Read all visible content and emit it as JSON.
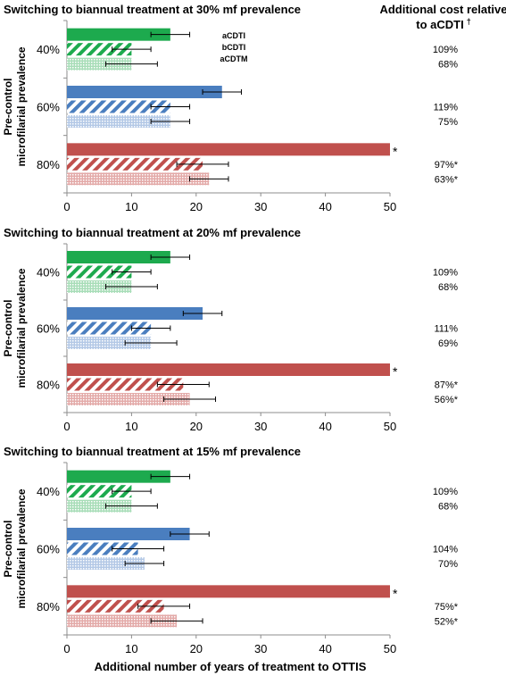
{
  "header": {
    "cost_title_line1": "Additional cost relative",
    "cost_title_line2": "to aCDTI",
    "cost_title_dagger": "†"
  },
  "legend": [
    "aCDTI",
    "bCDTI",
    "aCDTM"
  ],
  "colors": {
    "40%": "#1daa4e",
    "60%": "#4a7ebf",
    "80%": "#c0504d"
  },
  "y_axis_label_line1": "Pre-control",
  "y_axis_label_line2": "microfilarial prevalence",
  "x_axis_label": "Additional number of years of treatment to OTTIS",
  "chart_data": [
    {
      "type": "bar",
      "title": "Switching to biannual treatment at 30% mf prevalence",
      "categories": [
        "40%",
        "60%",
        "80%"
      ],
      "xlim": [
        0,
        50
      ],
      "xticks": [
        0,
        10,
        20,
        30,
        40,
        50
      ],
      "series": [
        {
          "name": "aCDTI",
          "values": [
            16,
            24,
            50
          ],
          "errors": [
            3,
            3,
            null
          ],
          "stars": [
            false,
            false,
            true
          ]
        },
        {
          "name": "bCDTI",
          "values": [
            10,
            16,
            21
          ],
          "errors": [
            3,
            3,
            4
          ],
          "stars": [
            false,
            false,
            false
          ]
        },
        {
          "name": "aCDTM",
          "values": [
            10,
            16,
            22
          ],
          "errors": [
            4,
            3,
            3
          ],
          "stars": [
            false,
            false,
            false
          ]
        }
      ],
      "cost_labels": [
        [
          "109%",
          "68%"
        ],
        [
          "119%",
          "75%"
        ],
        [
          "97%*",
          "63%*"
        ]
      ]
    },
    {
      "type": "bar",
      "title": "Switching to biannual treatment at 20% mf prevalence",
      "categories": [
        "40%",
        "60%",
        "80%"
      ],
      "xlim": [
        0,
        50
      ],
      "xticks": [
        0,
        10,
        20,
        30,
        40,
        50
      ],
      "series": [
        {
          "name": "aCDTI",
          "values": [
            16,
            21,
            50
          ],
          "errors": [
            3,
            3,
            null
          ],
          "stars": [
            false,
            false,
            true
          ]
        },
        {
          "name": "bCDTI",
          "values": [
            10,
            13,
            18
          ],
          "errors": [
            3,
            3,
            4
          ],
          "stars": [
            false,
            false,
            false
          ]
        },
        {
          "name": "aCDTM",
          "values": [
            10,
            13,
            19
          ],
          "errors": [
            4,
            4,
            4
          ],
          "stars": [
            false,
            false,
            false
          ]
        }
      ],
      "cost_labels": [
        [
          "109%",
          "68%"
        ],
        [
          "111%",
          "69%"
        ],
        [
          "87%*",
          "56%*"
        ]
      ]
    },
    {
      "type": "bar",
      "title": "Switching to biannual treatment at 15% mf prevalence",
      "categories": [
        "40%",
        "60%",
        "80%"
      ],
      "xlim": [
        0,
        50
      ],
      "xticks": [
        0,
        10,
        20,
        30,
        40,
        50
      ],
      "series": [
        {
          "name": "aCDTI",
          "values": [
            16,
            19,
            50
          ],
          "errors": [
            3,
            3,
            null
          ],
          "stars": [
            false,
            false,
            true
          ]
        },
        {
          "name": "bCDTI",
          "values": [
            10,
            11,
            15
          ],
          "errors": [
            3,
            4,
            4
          ],
          "stars": [
            false,
            false,
            false
          ]
        },
        {
          "name": "aCDTM",
          "values": [
            10,
            12,
            17
          ],
          "errors": [
            4,
            3,
            4
          ],
          "stars": [
            false,
            false,
            false
          ]
        }
      ],
      "cost_labels": [
        [
          "109%",
          "68%"
        ],
        [
          "104%",
          "70%"
        ],
        [
          "75%*",
          "52%*"
        ]
      ]
    }
  ]
}
